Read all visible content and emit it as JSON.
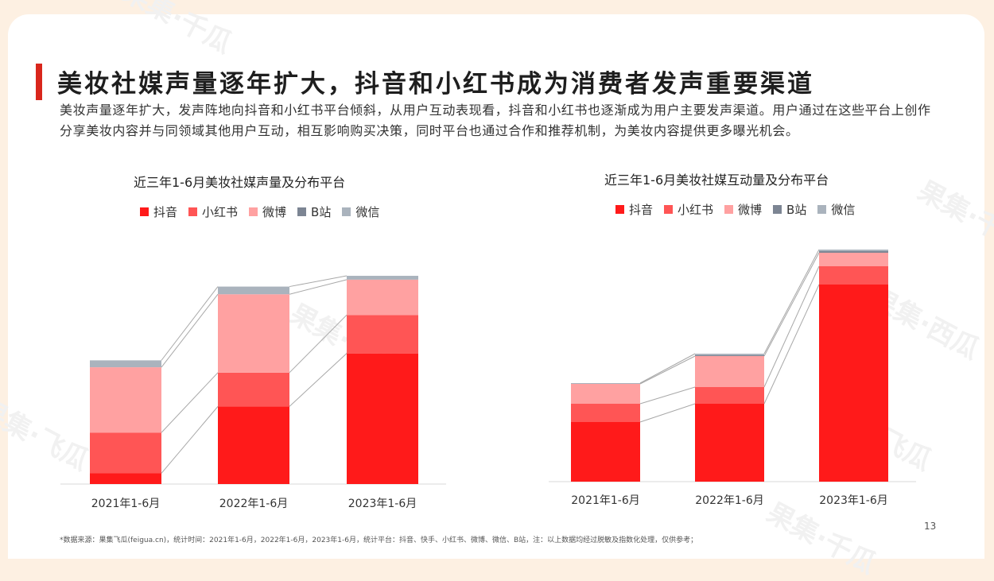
{
  "title": "美妆社媒声量逐年扩大，抖音和小红书成为消费者发声重要渠道",
  "intro": "美妆声量逐年扩大，发声阵地向抖音和小红书平台倾斜，从用户互动表现看，抖音和小红书也逐渐成为用户主要发声渠道。用户通过在这些平台上创作分享美妆内容并与同领域其他用户互动，相互影响购买决策，同时平台也通过合作和推荐机制，为美妆内容提供更多曝光机会。",
  "colors": {
    "抖音": "#ff1a1a",
    "小红书": "#ff5555",
    "微博": "#ffa1a1",
    "B站": "#7c8593",
    "微信": "#aab3bd"
  },
  "chart_data": [
    {
      "type": "bar",
      "stacked": true,
      "title": "近三年1-6月美妆社媒声量及分布平台",
      "categories": [
        "2021年1-6月",
        "2022年1-6月",
        "2023年1-6月"
      ],
      "series": [
        {
          "name": "抖音",
          "values": [
            14,
            101,
            170
          ]
        },
        {
          "name": "小红书",
          "values": [
            53,
            44,
            50
          ]
        },
        {
          "name": "微博",
          "values": [
            85,
            102,
            46
          ]
        },
        {
          "name": "B站",
          "values": [
            0,
            0,
            0
          ]
        },
        {
          "name": "微信",
          "values": [
            9,
            10,
            5
          ]
        }
      ],
      "ylim": [
        0,
        300
      ],
      "legend": "top",
      "grid": false
    },
    {
      "type": "bar",
      "stacked": true,
      "title": "近三年1-6月美妆社媒互动量及分布平台",
      "categories": [
        "2021年1-6月",
        "2022年1-6月",
        "2023年1-6月"
      ],
      "series": [
        {
          "name": "抖音",
          "values": [
            75,
            98,
            248
          ]
        },
        {
          "name": "小红书",
          "values": [
            23,
            21,
            23
          ]
        },
        {
          "name": "微博",
          "values": [
            25,
            39,
            17
          ]
        },
        {
          "name": "B站",
          "values": [
            0,
            1,
            2
          ]
        },
        {
          "name": "微信",
          "values": [
            1,
            2,
            2
          ]
        }
      ],
      "ylim": [
        0,
        300
      ],
      "legend": "top",
      "grid": false
    }
  ],
  "source": "*数据来源：果集飞瓜(feigua.cn)，统计时间：2021年1-6月，2022年1-6月，2023年1-6月，统计平台：抖音、快手、小红书、微博、微信、B站，注：以上数据均经过脱敏及指数化处理，仅供参考；",
  "page_number": "13",
  "watermarks": [
    "果集·千瓜",
    "果集·西瓜",
    "果集·飞瓜"
  ]
}
